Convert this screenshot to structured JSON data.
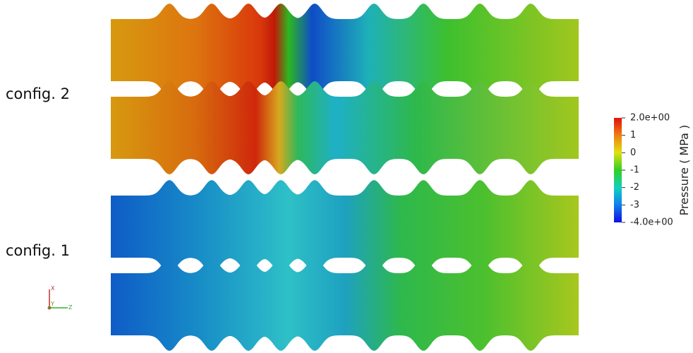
{
  "labels": [
    "config. 2",
    "config. 1"
  ],
  "axes": {
    "x": "X",
    "y": "Y",
    "z": "Z"
  },
  "colorbar": {
    "title": "Pressure ( MPa )",
    "range": [
      -4,
      2
    ],
    "ticks": [
      {
        "value": 2,
        "label": "2.0e+00"
      },
      1,
      0,
      -1,
      -2,
      -3,
      {
        "value": -4,
        "label": "-4.0e+00"
      }
    ]
  }
}
